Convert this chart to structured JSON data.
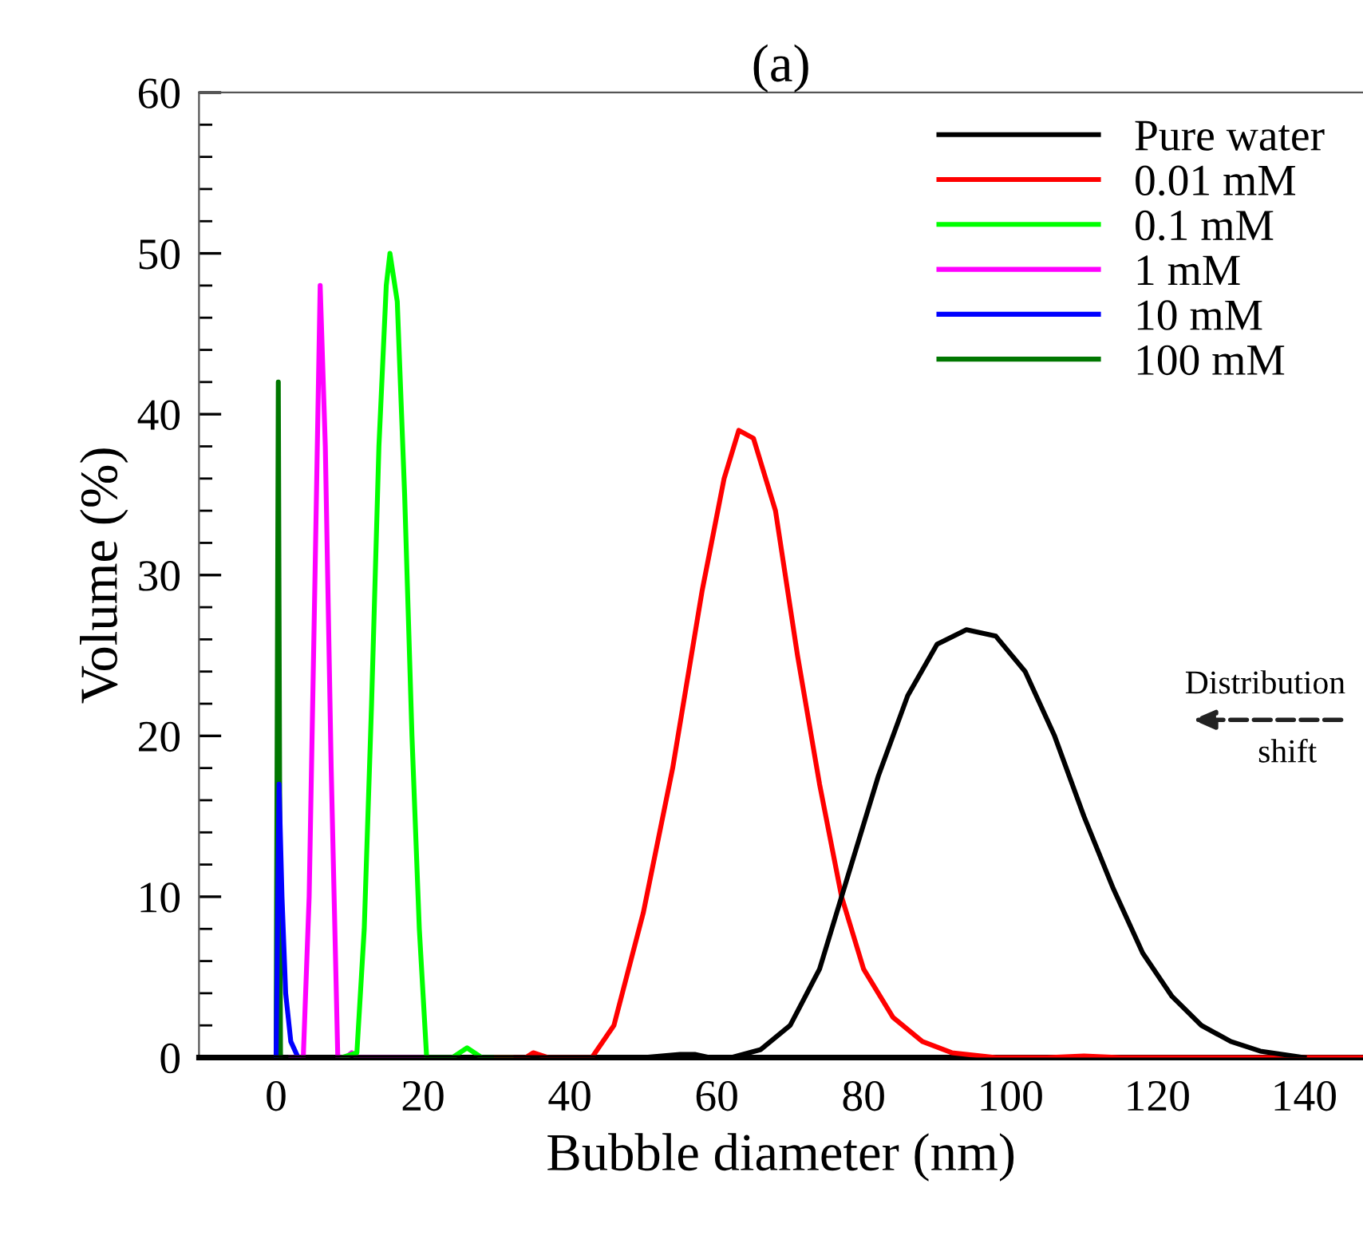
{
  "chart_data": {
    "type": "line",
    "title": "(a)",
    "xlabel": "Bubble diameter (nm)",
    "ylabel": "Volume (%)",
    "xlim": [
      -10.5,
      148
    ],
    "xticks": [
      0,
      20,
      40,
      60,
      80,
      100,
      120,
      140
    ],
    "ylim": [
      0,
      60
    ],
    "yticks": [
      0,
      10,
      20,
      30,
      40,
      50,
      60
    ],
    "grid": false,
    "legend": "top right",
    "marker": "none",
    "line_style": "solid",
    "annotations": [
      "Distribution",
      "shift"
    ],
    "series": [
      {
        "name": "Pure water",
        "color": "#000000",
        "x": [
          0,
          50,
          55,
          57,
          59,
          62,
          66,
          70,
          74,
          78,
          82,
          86,
          90,
          94,
          98,
          102,
          106,
          110,
          114,
          118,
          122,
          126,
          130,
          134,
          140
        ],
        "values": [
          0,
          0,
          0.2,
          0.2,
          0,
          0,
          0.5,
          2,
          5.5,
          11.5,
          17.5,
          22.5,
          25.7,
          26.6,
          26.2,
          24,
          20,
          15,
          10.5,
          6.5,
          3.8,
          2,
          1,
          0.4,
          0
        ]
      },
      {
        "name": "0.01 mM",
        "color": "#ff0000",
        "x": [
          30,
          34,
          35,
          37,
          43,
          46,
          50,
          54,
          58,
          61,
          63,
          65,
          68,
          71,
          74,
          77,
          80,
          84,
          88,
          92,
          98,
          105,
          110,
          115,
          148
        ],
        "values": [
          0,
          0,
          0.3,
          0,
          0,
          2,
          9,
          18,
          29,
          36,
          39,
          38.5,
          34,
          25,
          17,
          10,
          5.5,
          2.5,
          1,
          0.3,
          0,
          0,
          0.1,
          0,
          0
        ]
      },
      {
        "name": "0.1 mM",
        "color": "#00ff00",
        "x": [
          9,
          11,
          12,
          13,
          14,
          15,
          15.5,
          16.5,
          17.5,
          18.5,
          19.5,
          20.5,
          24,
          26,
          28,
          32
        ],
        "values": [
          0,
          0.3,
          8,
          22,
          38,
          48,
          50,
          47,
          35,
          20,
          8,
          0,
          0,
          0.6,
          0,
          0
        ]
      },
      {
        "name": "1 mM",
        "color": "#ff00ff",
        "x": [
          2,
          3.7,
          4.5,
          5.3,
          6,
          6.7,
          7.5,
          8.4,
          9.5,
          10.3,
          11,
          20
        ],
        "values": [
          0,
          0,
          10,
          30,
          48,
          38,
          18,
          0,
          0,
          0.3,
          0,
          0
        ]
      },
      {
        "name": "10 mM",
        "color": "#0000ff",
        "x": [
          0,
          0.4,
          0.8,
          1.3,
          2,
          3
        ],
        "values": [
          0,
          17,
          10,
          4,
          1,
          0
        ]
      },
      {
        "name": "100 mM",
        "color": "#007700",
        "x": [
          0,
          0.3,
          0.6
        ],
        "values": [
          0,
          42,
          0
        ]
      }
    ]
  }
}
